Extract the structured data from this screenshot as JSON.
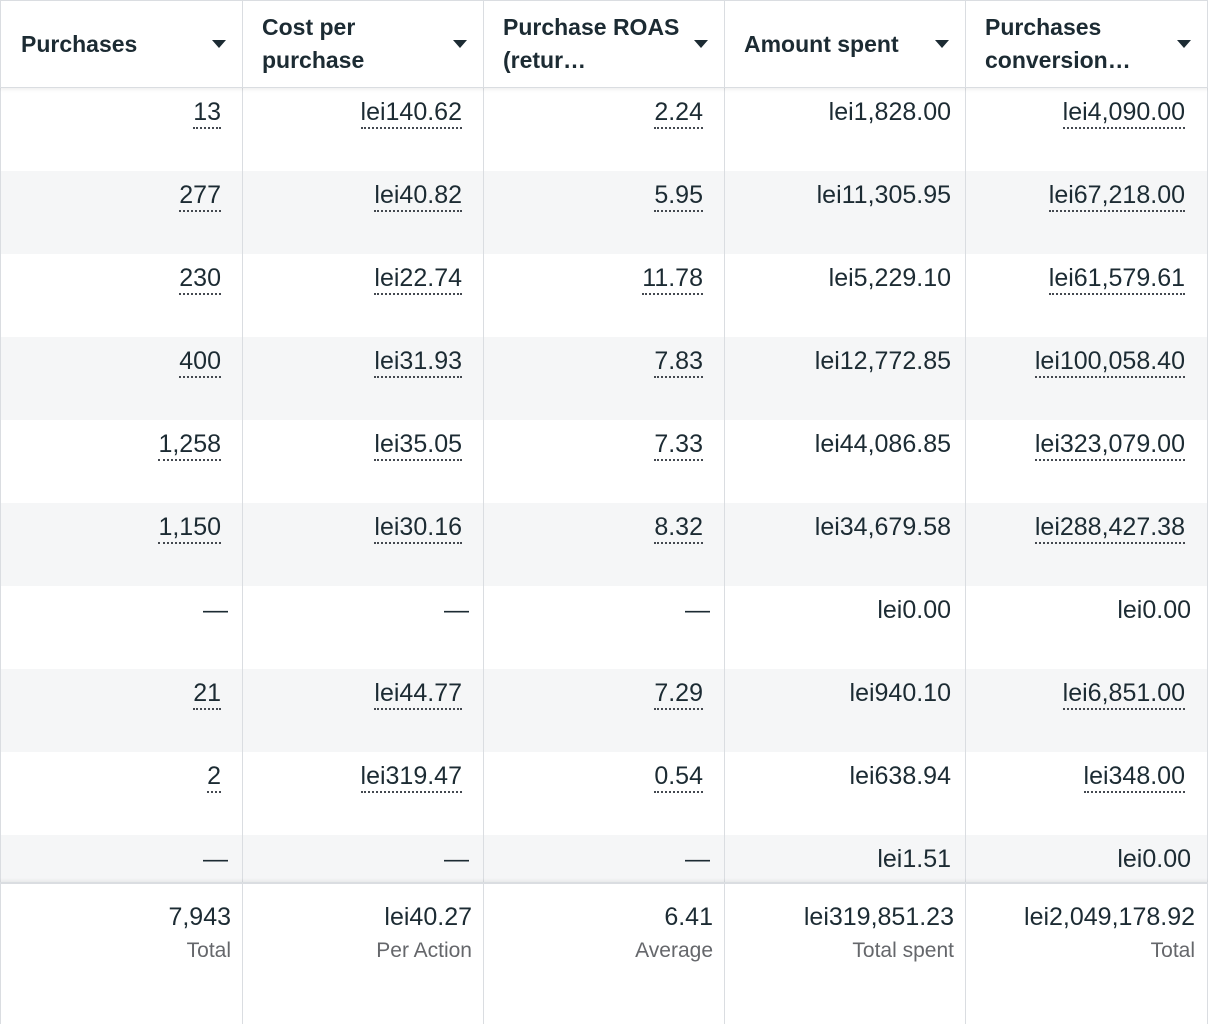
{
  "columns": [
    {
      "label": "Purchases"
    },
    {
      "label": "Cost per purchase"
    },
    {
      "label": "Purchase ROAS (retur…"
    },
    {
      "label": "Amount spent"
    },
    {
      "label": "Purchases conversion…"
    }
  ],
  "rows": [
    {
      "purchases": "13",
      "cost_per_purchase": "lei140.62",
      "roas": "2.24",
      "amount_spent": "lei1,828.00",
      "conversion_value": "lei4,090.00"
    },
    {
      "purchases": "277",
      "cost_per_purchase": "lei40.82",
      "roas": "5.95",
      "amount_spent": "lei11,305.95",
      "conversion_value": "lei67,218.00"
    },
    {
      "purchases": "230",
      "cost_per_purchase": "lei22.74",
      "roas": "11.78",
      "amount_spent": "lei5,229.10",
      "conversion_value": "lei61,579.61"
    },
    {
      "purchases": "400",
      "cost_per_purchase": "lei31.93",
      "roas": "7.83",
      "amount_spent": "lei12,772.85",
      "conversion_value": "lei100,058.40"
    },
    {
      "purchases": "1,258",
      "cost_per_purchase": "lei35.05",
      "roas": "7.33",
      "amount_spent": "lei44,086.85",
      "conversion_value": "lei323,079.00"
    },
    {
      "purchases": "1,150",
      "cost_per_purchase": "lei30.16",
      "roas": "8.32",
      "amount_spent": "lei34,679.58",
      "conversion_value": "lei288,427.38"
    },
    {
      "purchases": "—",
      "cost_per_purchase": "—",
      "roas": "—",
      "amount_spent": "lei0.00",
      "conversion_value": "lei0.00"
    },
    {
      "purchases": "21",
      "cost_per_purchase": "lei44.77",
      "roas": "7.29",
      "amount_spent": "lei940.10",
      "conversion_value": "lei6,851.00"
    },
    {
      "purchases": "2",
      "cost_per_purchase": "lei319.47",
      "roas": "0.54",
      "amount_spent": "lei638.94",
      "conversion_value": "lei348.00"
    },
    {
      "purchases": "—",
      "cost_per_purchase": "—",
      "roas": "—",
      "amount_spent": "lei1.51",
      "conversion_value": "lei0.00"
    }
  ],
  "totals": [
    {
      "value": "7,943",
      "label": "Total"
    },
    {
      "value": "lei40.27",
      "label": "Per Action"
    },
    {
      "value": "6.41",
      "label": "Average"
    },
    {
      "value": "lei319,851.23",
      "label": "Total spent"
    },
    {
      "value": "lei2,049,178.92",
      "label": "Total"
    }
  ],
  "icons": {
    "sort": "caret-down-icon"
  },
  "colors": {
    "alt_row": "#f5f6f7",
    "border": "#dadde1",
    "text": "#1c2b33",
    "muted": "#65676b"
  }
}
